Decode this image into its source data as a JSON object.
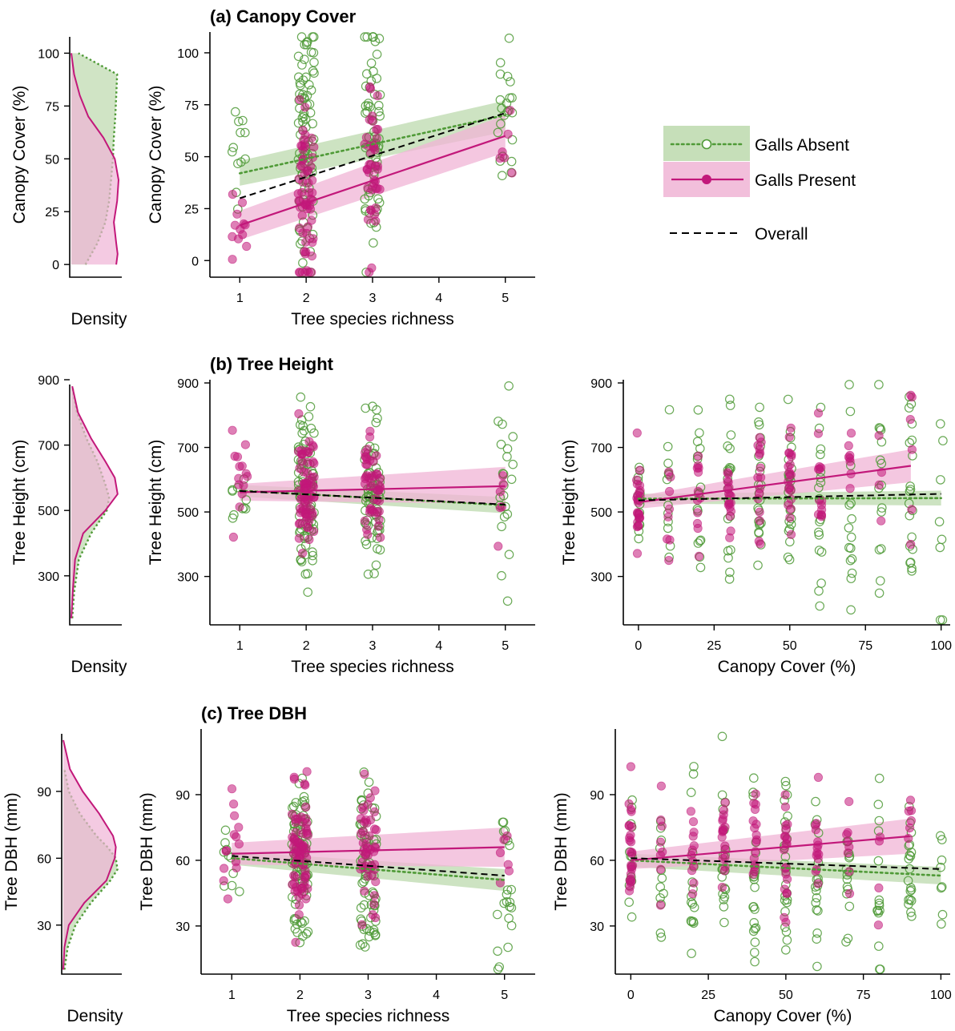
{
  "colors": {
    "absent": "#4f9a37",
    "present": "#c2187a",
    "overall": "#000000",
    "absent_band": "#bcd9ad",
    "present_band": "#f0b4d5"
  },
  "legend": {
    "absent": "Galls Absent",
    "present": "Galls Present",
    "overall": "Overall"
  },
  "chart_data": [
    {
      "id": "a_density",
      "type": "area",
      "ylabel": "Canopy Cover (%)",
      "xlabel": "Density",
      "ylim": [
        -6,
        110
      ],
      "yticks": [
        0,
        25,
        50,
        75,
        100
      ],
      "series": [
        {
          "name": "Galls Absent",
          "y": [
            0,
            10,
            20,
            30,
            40,
            50,
            60,
            70,
            80,
            90,
            100
          ],
          "values": [
            0.3,
            0.55,
            0.72,
            0.8,
            0.84,
            0.88,
            0.9,
            0.93,
            0.95,
            0.97,
            0.15
          ]
        },
        {
          "name": "Galls Present",
          "y": [
            0,
            5,
            10,
            20,
            30,
            40,
            50,
            60,
            70,
            80,
            90,
            100
          ],
          "values": [
            0.95,
            0.98,
            0.95,
            0.9,
            0.97,
            1.0,
            0.92,
            0.68,
            0.36,
            0.18,
            0.06,
            0.0
          ]
        }
      ]
    },
    {
      "id": "a_richness",
      "type": "scatter",
      "title": "(a) Canopy Cover",
      "xlabel": "Tree species richness",
      "ylabel": "Canopy Cover (%)",
      "xlim": [
        0.55,
        5.45
      ],
      "ylim": [
        -8,
        110
      ],
      "xticks": [
        1,
        2,
        3,
        4,
        5
      ],
      "yticks": [
        0,
        25,
        50,
        75,
        100
      ],
      "x_levels": [
        1,
        2,
        3,
        5
      ],
      "jitter": 0.12,
      "absent": {
        "counts": [
          12,
          90,
          65,
          22
        ],
        "mean": [
          45,
          56,
          60,
          70
        ],
        "sd": [
          22,
          35,
          30,
          15
        ]
      },
      "present": {
        "counts": [
          12,
          60,
          40,
          6
        ],
        "mean": [
          15,
          32,
          42,
          60
        ],
        "sd": [
          15,
          22,
          20,
          15
        ]
      },
      "fits": {
        "absent": {
          "x": [
            1,
            5
          ],
          "y": [
            42,
            70
          ],
          "band": [
            [
              36,
              48
            ],
            [
              62,
              77
            ]
          ]
        },
        "present": {
          "x": [
            1,
            5
          ],
          "y": [
            17,
            60
          ],
          "band": [
            [
              10,
              24
            ],
            [
              52,
              70
            ]
          ]
        },
        "overall": {
          "x": [
            1,
            5
          ],
          "y": [
            30,
            71
          ]
        }
      }
    },
    {
      "id": "b_density",
      "type": "area",
      "ylabel": "Tree Height (cm)",
      "xlabel": "Density",
      "ylim": [
        150,
        900
      ],
      "yticks": [
        300,
        500,
        700,
        900
      ],
      "series": [
        {
          "name": "Galls Absent",
          "y": [
            170,
            250,
            350,
            430,
            500,
            540,
            580,
            650,
            720,
            800,
            880
          ],
          "values": [
            0.02,
            0.06,
            0.16,
            0.42,
            0.75,
            0.8,
            0.72,
            0.55,
            0.32,
            0.12,
            0.02
          ]
        },
        {
          "name": "Galls Present",
          "y": [
            170,
            250,
            350,
            430,
            500,
            550,
            600,
            650,
            720,
            800,
            880
          ],
          "values": [
            0.0,
            0.03,
            0.08,
            0.25,
            0.72,
            0.98,
            0.92,
            0.72,
            0.42,
            0.14,
            0.02
          ]
        }
      ]
    },
    {
      "id": "b_richness",
      "type": "scatter",
      "title": "(b) Tree Height",
      "xlabel": "Tree species richness",
      "ylabel": "Tree Height (cm)",
      "xlim": [
        0.55,
        5.45
      ],
      "ylim": [
        150,
        910
      ],
      "xticks": [
        1,
        2,
        3,
        4,
        5
      ],
      "yticks": [
        300,
        500,
        700,
        900
      ],
      "x_levels": [
        1,
        2,
        3,
        5
      ],
      "jitter": 0.12,
      "absent": {
        "counts": [
          10,
          95,
          70,
          22
        ],
        "mean": [
          560,
          550,
          545,
          520
        ],
        "sd": [
          60,
          130,
          130,
          150
        ]
      },
      "present": {
        "counts": [
          14,
          70,
          45,
          6
        ],
        "mean": [
          570,
          560,
          580,
          560
        ],
        "sd": [
          100,
          90,
          90,
          110
        ]
      },
      "fits": {
        "absent": {
          "x": [
            1,
            5
          ],
          "y": [
            566,
            521
          ],
          "band": [
            [
              548,
              584
            ],
            [
              496,
              546
            ]
          ]
        },
        "present": {
          "x": [
            1,
            5
          ],
          "y": [
            561,
            580
          ],
          "band": [
            [
              535,
              587
            ],
            [
              525,
              640
            ]
          ]
        },
        "overall": {
          "x": [
            1,
            5
          ],
          "y": [
            565,
            523
          ]
        }
      }
    },
    {
      "id": "b_canopy",
      "type": "scatter",
      "xlabel": "Canopy Cover (%)",
      "ylabel": "Tree Height (cm)",
      "xlim": [
        -5,
        103
      ],
      "ylim": [
        150,
        910
      ],
      "xticks": [
        0,
        25,
        50,
        75,
        100
      ],
      "yticks": [
        300,
        500,
        700,
        900
      ],
      "x_levels": [
        0,
        10,
        20,
        30,
        40,
        50,
        60,
        70,
        80,
        90,
        100
      ],
      "jitter": 0.6,
      "absent": {
        "counts": [
          14,
          12,
          16,
          20,
          22,
          25,
          18,
          15,
          15,
          20,
          8
        ],
        "mean": [
          540,
          560,
          540,
          550,
          550,
          550,
          560,
          555,
          540,
          540,
          550
        ],
        "sd": [
          70,
          110,
          150,
          130,
          140,
          150,
          170,
          150,
          170,
          140,
          160
        ]
      },
      "present": {
        "counts": [
          25,
          8,
          12,
          18,
          16,
          20,
          14,
          8,
          4,
          6,
          0
        ],
        "mean": [
          520,
          540,
          550,
          560,
          580,
          600,
          610,
          620,
          620,
          640,
          0
        ],
        "sd": [
          80,
          90,
          80,
          70,
          100,
          90,
          90,
          80,
          100,
          120,
          0
        ]
      },
      "fits": {
        "absent": {
          "x": [
            0,
            100
          ],
          "y": [
            541,
            543
          ],
          "band": [
            [
              526,
              556
            ],
            [
              520,
              566
            ]
          ]
        },
        "present": {
          "x": [
            0,
            90
          ],
          "y": [
            530,
            643
          ],
          "band": [
            [
              510,
              550
            ],
            [
              592,
              694
            ]
          ]
        },
        "overall": {
          "x": [
            0,
            100
          ],
          "y": [
            536,
            556
          ]
        }
      }
    },
    {
      "id": "c_density",
      "type": "area",
      "ylabel": "Tree DBH (mm)",
      "xlabel": "Density",
      "ylim": [
        8,
        118
      ],
      "yticks": [
        30,
        60,
        90
      ],
      "series": [
        {
          "name": "Galls Absent",
          "y": [
            10,
            20,
            30,
            40,
            50,
            55,
            60,
            65,
            70,
            80,
            90,
            100
          ],
          "values": [
            0.02,
            0.08,
            0.22,
            0.5,
            0.85,
            0.98,
            0.95,
            0.8,
            0.6,
            0.3,
            0.1,
            0.02
          ]
        },
        {
          "name": "Galls Present",
          "y": [
            10,
            20,
            30,
            40,
            50,
            60,
            65,
            70,
            80,
            90,
            100,
            113
          ],
          "values": [
            0.0,
            0.02,
            0.1,
            0.38,
            0.78,
            0.93,
            0.95,
            0.9,
            0.65,
            0.35,
            0.12,
            0.0
          ]
        }
      ]
    },
    {
      "id": "c_richness",
      "type": "scatter",
      "title": "(c) Tree DBH",
      "xlabel": "Tree species richness",
      "ylabel": "Tree DBH (mm)",
      "xlim": [
        0.55,
        5.45
      ],
      "ylim": [
        8,
        120
      ],
      "xticks": [
        1,
        2,
        3,
        4,
        5
      ],
      "yticks": [
        30,
        60,
        90
      ],
      "x_levels": [
        1,
        2,
        3,
        5
      ],
      "jitter": 0.12,
      "absent": {
        "counts": [
          10,
          95,
          70,
          22
        ],
        "mean": [
          62,
          60,
          57,
          48
        ],
        "sd": [
          12,
          20,
          20,
          20
        ]
      },
      "present": {
        "counts": [
          14,
          70,
          45,
          6
        ],
        "mean": [
          62,
          64,
          66,
          60
        ],
        "sd": [
          15,
          15,
          16,
          18
        ]
      },
      "fits": {
        "absent": {
          "x": [
            1,
            5
          ],
          "y": [
            61,
            51
          ],
          "band": [
            [
              58,
              64
            ],
            [
              46,
              56
            ]
          ]
        },
        "present": {
          "x": [
            1,
            5
          ],
          "y": [
            63,
            66
          ],
          "band": [
            [
              58,
              68
            ],
            [
              57,
              75
            ]
          ]
        },
        "overall": {
          "x": [
            1,
            5
          ],
          "y": [
            62,
            53
          ]
        }
      }
    },
    {
      "id": "c_canopy",
      "type": "scatter",
      "xlabel": "Canopy Cover (%)",
      "ylabel": "Tree DBH (mm)",
      "xlim": [
        -5,
        103
      ],
      "ylim": [
        8,
        120
      ],
      "xticks": [
        0,
        25,
        50,
        75,
        100
      ],
      "yticks": [
        30,
        60,
        90
      ],
      "x_levels": [
        0,
        10,
        20,
        30,
        40,
        50,
        60,
        70,
        80,
        90,
        100
      ],
      "jitter": 0.6,
      "absent": {
        "counts": [
          14,
          12,
          16,
          20,
          22,
          25,
          18,
          15,
          15,
          20,
          8
        ],
        "mean": [
          60,
          60,
          58,
          58,
          58,
          57,
          55,
          55,
          52,
          52,
          55
        ],
        "sd": [
          15,
          15,
          20,
          20,
          22,
          22,
          22,
          20,
          22,
          20,
          25
        ]
      },
      "present": {
        "counts": [
          25,
          8,
          12,
          18,
          16,
          20,
          14,
          8,
          4,
          6,
          0
        ],
        "mean": [
          60,
          62,
          62,
          65,
          66,
          67,
          70,
          68,
          60,
          70,
          0
        ],
        "sd": [
          14,
          13,
          13,
          12,
          13,
          14,
          13,
          12,
          15,
          12,
          0
        ]
      },
      "fits": {
        "absent": {
          "x": [
            0,
            100
          ],
          "y": [
            60,
            53
          ],
          "band": [
            [
              57,
              63
            ],
            [
              49,
              57
            ]
          ]
        },
        "present": {
          "x": [
            0,
            90
          ],
          "y": [
            60,
            71
          ],
          "band": [
            [
              56,
              64
            ],
            [
              63,
              79
            ]
          ]
        },
        "overall": {
          "x": [
            0,
            100
          ],
          "y": [
            61,
            56
          ]
        }
      }
    }
  ]
}
